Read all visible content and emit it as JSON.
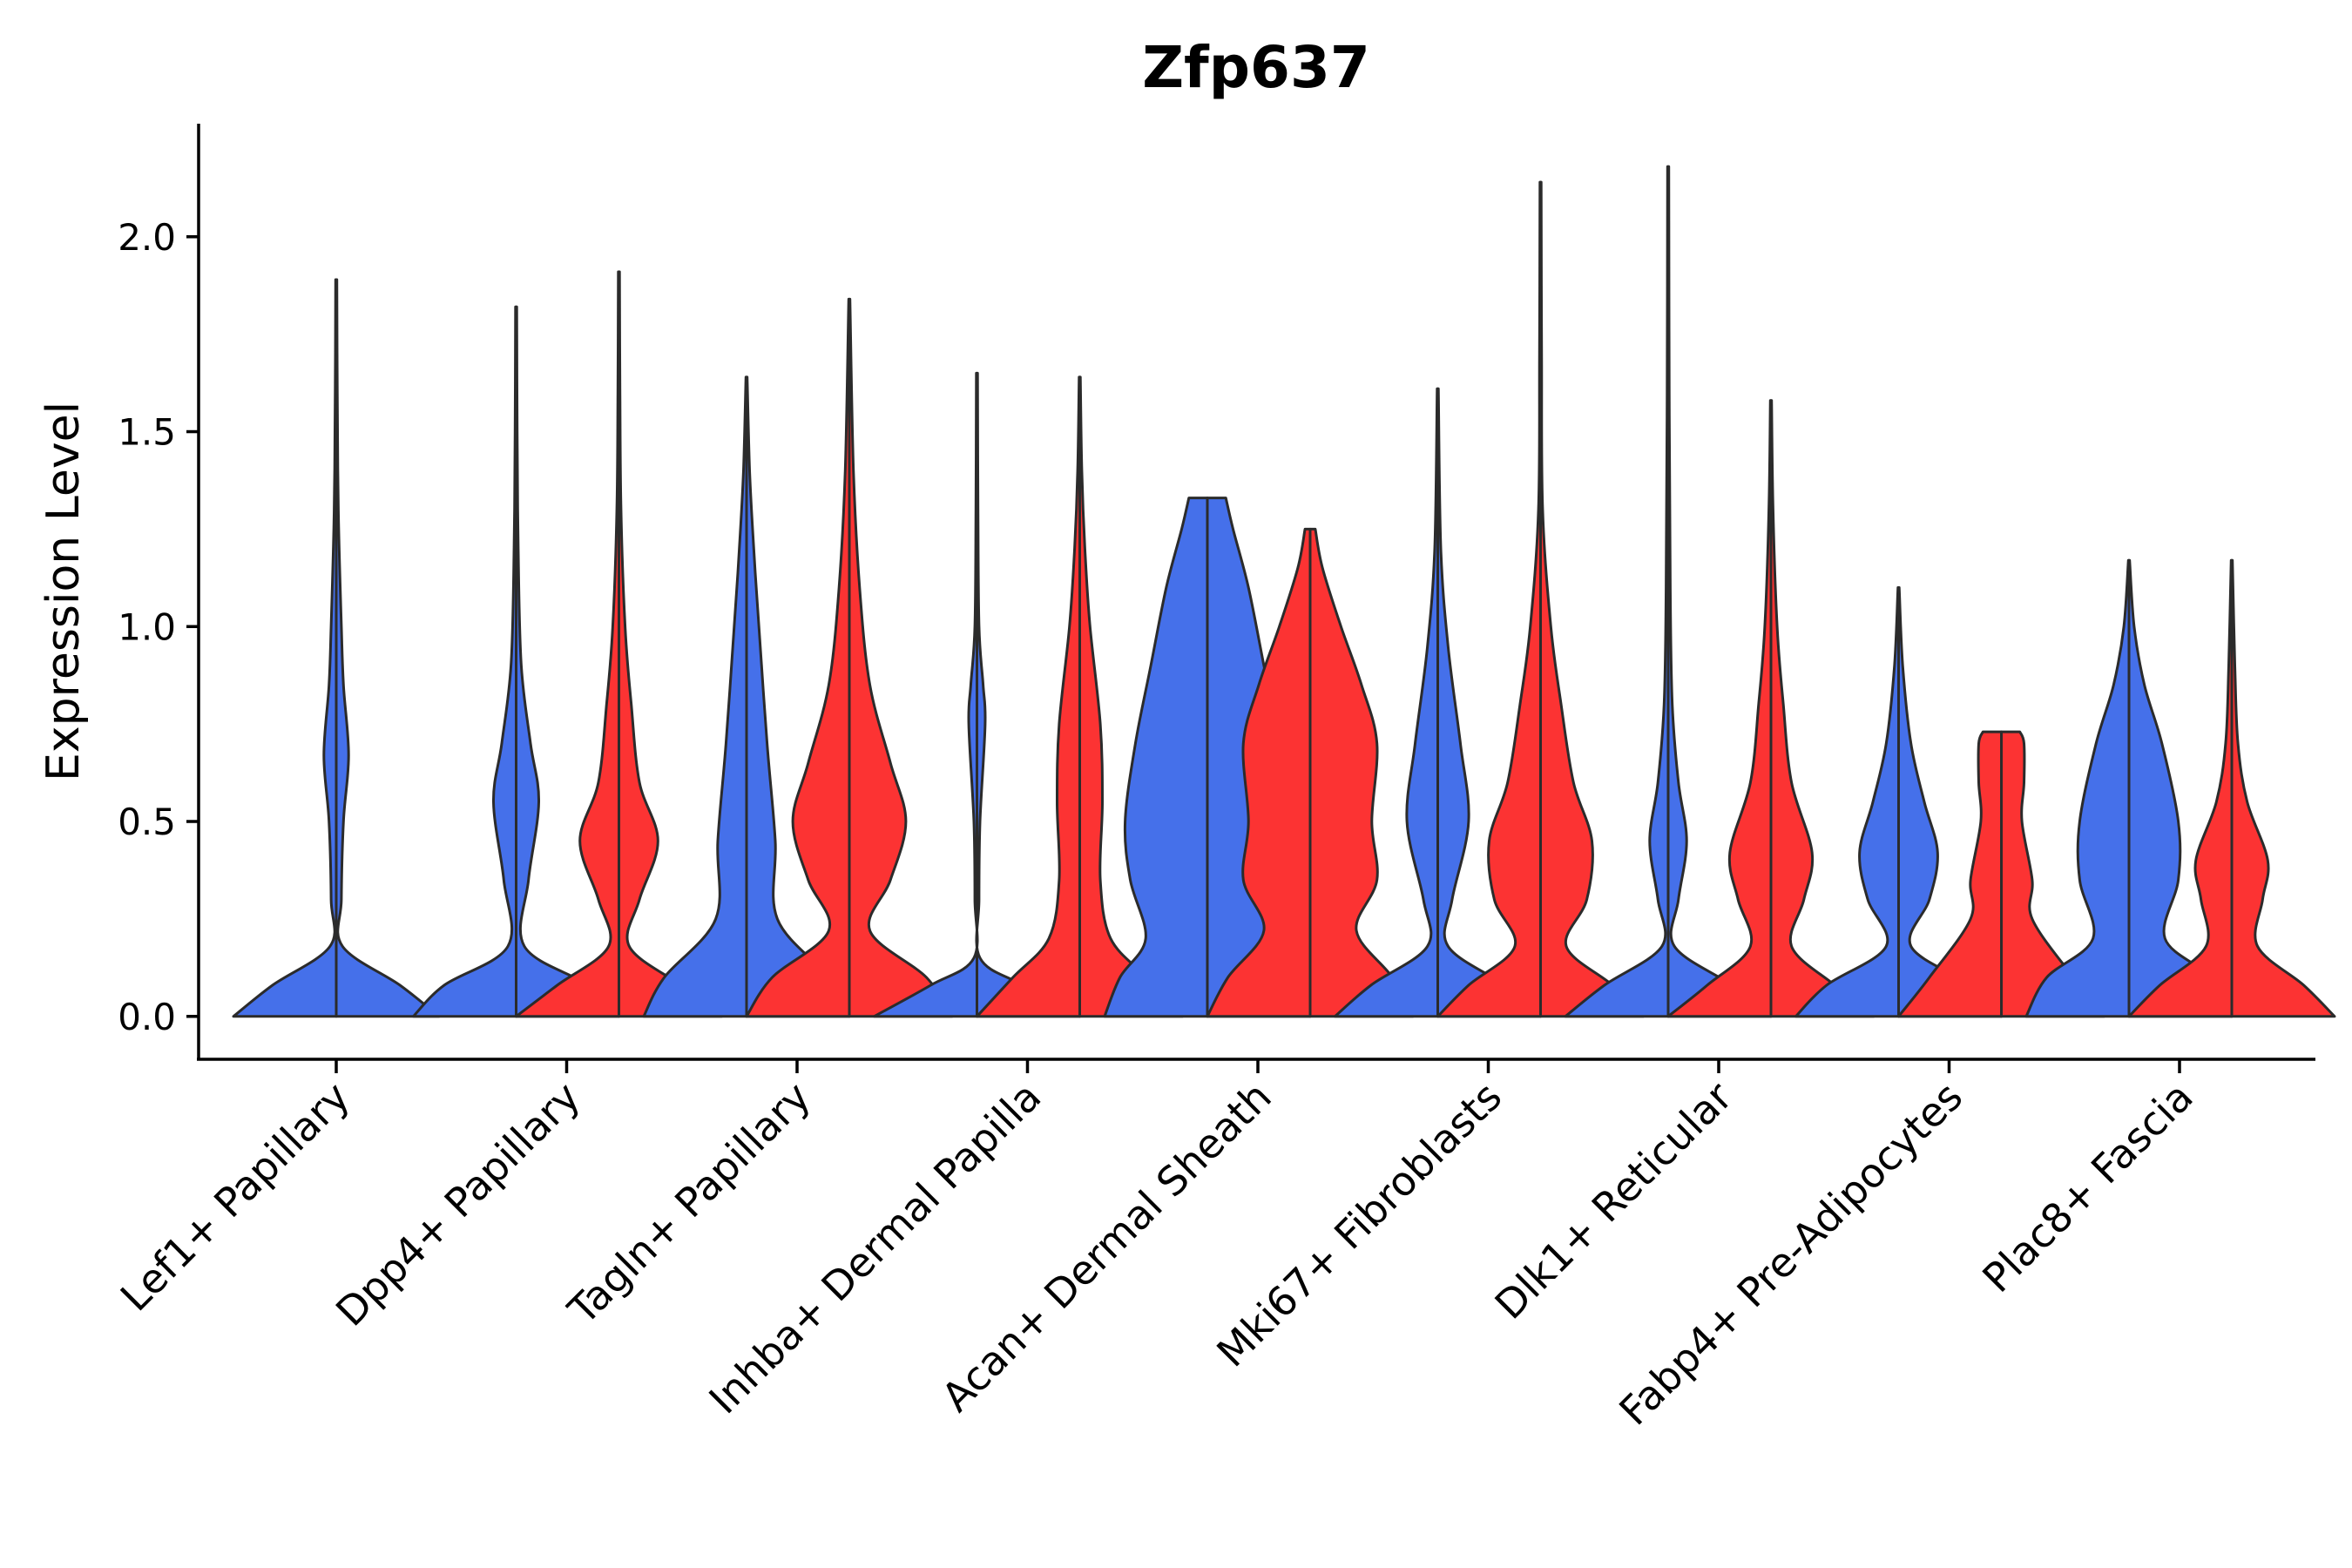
{
  "chart_data": {
    "type": "violin",
    "title": "Zfp637",
    "xlabel": "",
    "ylabel": "Expression Level",
    "ylim": [
      -0.11,
      2.29
    ],
    "yticks": [
      0.0,
      0.5,
      1.0,
      1.5,
      2.0
    ],
    "ytick_labels": [
      "0.0",
      "0.5",
      "1.0",
      "1.5",
      "2.0"
    ],
    "grid": false,
    "categories": [
      "Lef1+ Papillary",
      "Dpp4+ Papillary",
      "Tagln+ Papillary",
      "Inhba+ Dermal Papilla",
      "Acan+ Dermal Sheath",
      "Mki67+ Fibroblasts",
      "Dlk1+ Reticular",
      "Fabp4+ Pre-Adipocytes",
      "Plac8+ Fascia"
    ],
    "series": [
      {
        "name": "blue",
        "color": "#4570ea",
        "violins": [
          {
            "max": 1.89,
            "density": [
              [
                0.0,
                1.0
              ],
              [
                0.08,
                0.62
              ],
              [
                0.18,
                0.06
              ],
              [
                0.3,
                0.05
              ],
              [
                0.5,
                0.07
              ],
              [
                0.67,
                0.12
              ],
              [
                0.85,
                0.07
              ],
              [
                1.0,
                0.05
              ],
              [
                1.3,
                0.02
              ],
              [
                1.6,
                0.01
              ],
              [
                1.89,
                0.006
              ]
            ]
          },
          {
            "max": 1.82,
            "density": [
              [
                0.0,
                1.0
              ],
              [
                0.08,
                0.7
              ],
              [
                0.18,
                0.08
              ],
              [
                0.35,
                0.12
              ],
              [
                0.55,
                0.22
              ],
              [
                0.7,
                0.14
              ],
              [
                0.9,
                0.05
              ],
              [
                1.2,
                0.02
              ],
              [
                1.5,
                0.01
              ],
              [
                1.82,
                0.006
              ]
            ]
          },
          {
            "max": 1.64,
            "density": [
              [
                0.0,
                1.0
              ],
              [
                0.1,
                0.8
              ],
              [
                0.25,
                0.3
              ],
              [
                0.45,
                0.28
              ],
              [
                0.7,
                0.2
              ],
              [
                1.0,
                0.12
              ],
              [
                1.2,
                0.07
              ],
              [
                1.4,
                0.03
              ],
              [
                1.64,
                0.006
              ]
            ]
          },
          {
            "max": 1.65,
            "density": [
              [
                0.0,
                1.0
              ],
              [
                0.08,
                0.45
              ],
              [
                0.15,
                0.03
              ],
              [
                0.3,
                0.02
              ],
              [
                0.5,
                0.03
              ],
              [
                0.75,
                0.08
              ],
              [
                0.85,
                0.06
              ],
              [
                1.0,
                0.02
              ],
              [
                1.3,
                0.01
              ],
              [
                1.65,
                0.006
              ]
            ]
          },
          {
            "max": 1.33,
            "density": [
              [
                0.0,
                1.0
              ],
              [
                0.1,
                0.85
              ],
              [
                0.2,
                0.6
              ],
              [
                0.35,
                0.75
              ],
              [
                0.5,
                0.8
              ],
              [
                0.7,
                0.7
              ],
              [
                0.9,
                0.55
              ],
              [
                1.1,
                0.4
              ],
              [
                1.25,
                0.25
              ],
              [
                1.33,
                0.18
              ]
            ]
          },
          {
            "max": 1.61,
            "density": [
              [
                0.0,
                1.0
              ],
              [
                0.08,
                0.65
              ],
              [
                0.18,
                0.1
              ],
              [
                0.3,
                0.14
              ],
              [
                0.5,
                0.3
              ],
              [
                0.7,
                0.22
              ],
              [
                0.95,
                0.1
              ],
              [
                1.2,
                0.03
              ],
              [
                1.61,
                0.006
              ]
            ]
          },
          {
            "max": 2.18,
            "density": [
              [
                0.0,
                1.0
              ],
              [
                0.08,
                0.62
              ],
              [
                0.18,
                0.06
              ],
              [
                0.3,
                0.1
              ],
              [
                0.45,
                0.18
              ],
              [
                0.6,
                0.1
              ],
              [
                0.8,
                0.04
              ],
              [
                1.1,
                0.02
              ],
              [
                1.6,
                0.01
              ],
              [
                2.18,
                0.006
              ]
            ]
          },
          {
            "max": 1.1,
            "density": [
              [
                0.0,
                1.0
              ],
              [
                0.08,
                0.7
              ],
              [
                0.18,
                0.12
              ],
              [
                0.3,
                0.3
              ],
              [
                0.42,
                0.38
              ],
              [
                0.55,
                0.25
              ],
              [
                0.7,
                0.12
              ],
              [
                0.9,
                0.04
              ],
              [
                1.1,
                0.006
              ]
            ]
          },
          {
            "max": 1.17,
            "density": [
              [
                0.0,
                1.0
              ],
              [
                0.1,
                0.8
              ],
              [
                0.2,
                0.35
              ],
              [
                0.35,
                0.48
              ],
              [
                0.5,
                0.48
              ],
              [
                0.7,
                0.32
              ],
              [
                0.85,
                0.15
              ],
              [
                1.0,
                0.05
              ],
              [
                1.17,
                0.006
              ]
            ]
          }
        ]
      },
      {
        "name": "red",
        "color": "#fc3333",
        "violins": [
          null,
          {
            "max": 1.91,
            "density": [
              [
                0.0,
                1.0
              ],
              [
                0.08,
                0.6
              ],
              [
                0.18,
                0.1
              ],
              [
                0.3,
                0.2
              ],
              [
                0.45,
                0.38
              ],
              [
                0.6,
                0.2
              ],
              [
                0.8,
                0.12
              ],
              [
                1.0,
                0.06
              ],
              [
                1.3,
                0.02
              ],
              [
                1.6,
                0.01
              ],
              [
                1.91,
                0.006
              ]
            ]
          },
          {
            "max": 1.84,
            "density": [
              [
                0.0,
                1.0
              ],
              [
                0.1,
                0.75
              ],
              [
                0.22,
                0.2
              ],
              [
                0.35,
                0.4
              ],
              [
                0.5,
                0.55
              ],
              [
                0.65,
                0.4
              ],
              [
                0.85,
                0.2
              ],
              [
                1.1,
                0.1
              ],
              [
                1.4,
                0.04
              ],
              [
                1.84,
                0.006
              ]
            ]
          },
          {
            "max": 1.64,
            "density": [
              [
                0.0,
                1.0
              ],
              [
                0.1,
                0.65
              ],
              [
                0.2,
                0.3
              ],
              [
                0.35,
                0.2
              ],
              [
                0.55,
                0.22
              ],
              [
                0.75,
                0.2
              ],
              [
                1.0,
                0.1
              ],
              [
                1.2,
                0.05
              ],
              [
                1.4,
                0.02
              ],
              [
                1.64,
                0.006
              ]
            ]
          },
          {
            "max": 1.25,
            "density": [
              [
                0.0,
                1.0
              ],
              [
                0.1,
                0.8
              ],
              [
                0.22,
                0.45
              ],
              [
                0.35,
                0.65
              ],
              [
                0.5,
                0.6
              ],
              [
                0.7,
                0.65
              ],
              [
                0.85,
                0.5
              ],
              [
                1.0,
                0.3
              ],
              [
                1.15,
                0.12
              ],
              [
                1.25,
                0.05
              ]
            ]
          },
          {
            "max": 2.14,
            "density": [
              [
                0.0,
                1.0
              ],
              [
                0.08,
                0.7
              ],
              [
                0.18,
                0.25
              ],
              [
                0.3,
                0.45
              ],
              [
                0.45,
                0.5
              ],
              [
                0.6,
                0.32
              ],
              [
                0.8,
                0.2
              ],
              [
                1.0,
                0.1
              ],
              [
                1.3,
                0.02
              ],
              [
                1.7,
                0.01
              ],
              [
                2.14,
                0.006
              ]
            ]
          },
          {
            "max": 1.58,
            "density": [
              [
                0.0,
                1.0
              ],
              [
                0.08,
                0.62
              ],
              [
                0.18,
                0.2
              ],
              [
                0.3,
                0.32
              ],
              [
                0.42,
                0.4
              ],
              [
                0.6,
                0.2
              ],
              [
                0.8,
                0.12
              ],
              [
                1.0,
                0.06
              ],
              [
                1.3,
                0.02
              ],
              [
                1.58,
                0.006
              ]
            ]
          },
          {
            "max": 0.73,
            "density": [
              [
                0.0,
                1.0
              ],
              [
                0.1,
                0.7
              ],
              [
                0.25,
                0.3
              ],
              [
                0.35,
                0.3
              ],
              [
                0.5,
                0.2
              ],
              [
                0.6,
                0.22
              ],
              [
                0.7,
                0.22
              ],
              [
                0.73,
                0.18
              ]
            ]
          },
          {
            "max": 1.17,
            "density": [
              [
                0.0,
                1.0
              ],
              [
                0.08,
                0.7
              ],
              [
                0.18,
                0.25
              ],
              [
                0.3,
                0.3
              ],
              [
                0.4,
                0.35
              ],
              [
                0.55,
                0.15
              ],
              [
                0.7,
                0.06
              ],
              [
                0.9,
                0.03
              ],
              [
                1.17,
                0.006
              ]
            ]
          }
        ]
      }
    ]
  }
}
